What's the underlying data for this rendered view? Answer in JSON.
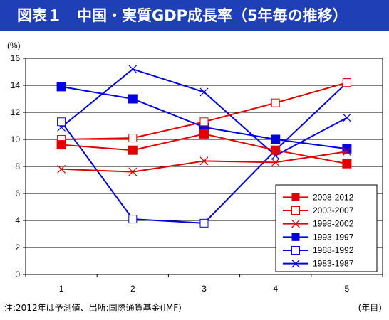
{
  "title": "図表１　中国・実質GDP成長率（5年毎の推移）",
  "footnote": "注:2012年は予測値、出所:国際通貨基金(IMF)",
  "chart_data": {
    "type": "line",
    "y_unit": "(%)",
    "x_unit": "(年目)",
    "x": [
      1,
      2,
      3,
      4,
      5
    ],
    "ylim": [
      0,
      16
    ],
    "yticks": [
      0,
      2,
      4,
      6,
      8,
      10,
      12,
      14,
      16
    ],
    "grid": "horizontal",
    "legend_position": "bottom-right",
    "series": [
      {
        "name": "2008-2012",
        "color": "#e00000",
        "marker": "filled-square",
        "values": [
          9.6,
          9.2,
          10.4,
          9.2,
          8.2
        ]
      },
      {
        "name": "2003-2007",
        "color": "#e00000",
        "marker": "open-square",
        "values": [
          10.0,
          10.1,
          11.3,
          12.7,
          14.2
        ]
      },
      {
        "name": "1998-2002",
        "color": "#e00000",
        "marker": "x",
        "values": [
          7.8,
          7.6,
          8.4,
          8.3,
          9.1
        ]
      },
      {
        "name": "1993-1997",
        "color": "#0000e0",
        "marker": "filled-square",
        "values": [
          13.9,
          13.0,
          10.9,
          10.0,
          9.3
        ]
      },
      {
        "name": "1988-1992",
        "color": "#0000e0",
        "marker": "open-square",
        "values": [
          11.3,
          4.1,
          3.8,
          9.2,
          14.2
        ]
      },
      {
        "name": "1983-1987",
        "color": "#0000e0",
        "marker": "x",
        "values": [
          10.9,
          15.2,
          13.5,
          8.8,
          11.6
        ]
      }
    ]
  }
}
